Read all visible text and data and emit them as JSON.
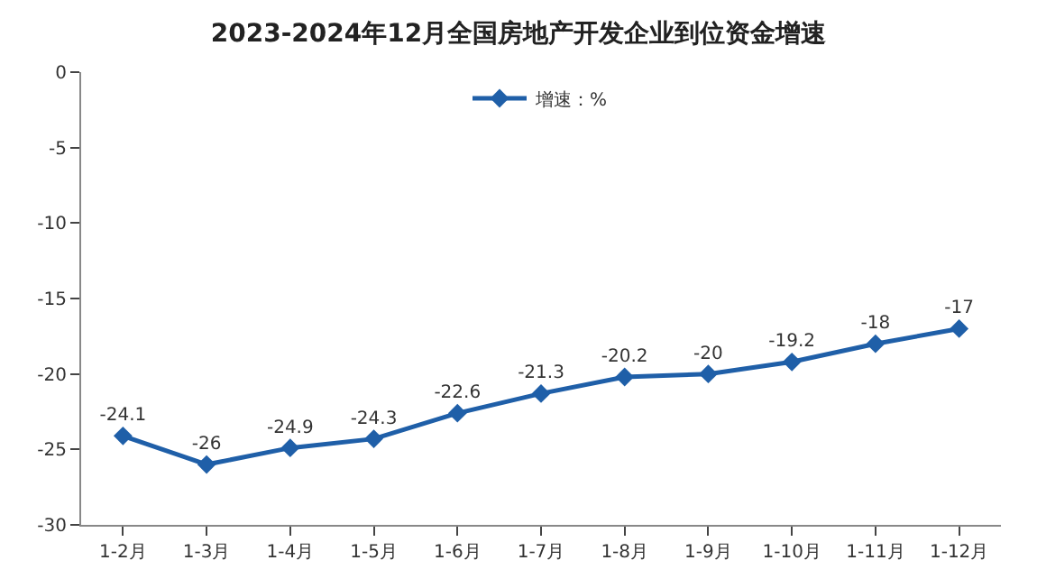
{
  "chart_data": {
    "type": "line",
    "title": "2023-2024年12月全国房地产开发企业到位资金增速",
    "categories": [
      "1-2月",
      "1-3月",
      "1-4月",
      "1-5月",
      "1-6月",
      "1-7月",
      "1-8月",
      "1-9月",
      "1-10月",
      "1-11月",
      "1-12月"
    ],
    "series": [
      {
        "name": "增速：%",
        "color": "#1f5fa8",
        "values": [
          -24.1,
          -26,
          -24.9,
          -24.3,
          -22.6,
          -21.3,
          -20.2,
          -20,
          -19.2,
          -18,
          -17
        ]
      }
    ],
    "ylim": [
      -30,
      0
    ],
    "yticks": [
      -30,
      -25,
      -20,
      -15,
      -10,
      -5,
      0
    ],
    "data_labels": true,
    "legend": "top",
    "marker": "diamond",
    "line_style": "solid"
  }
}
